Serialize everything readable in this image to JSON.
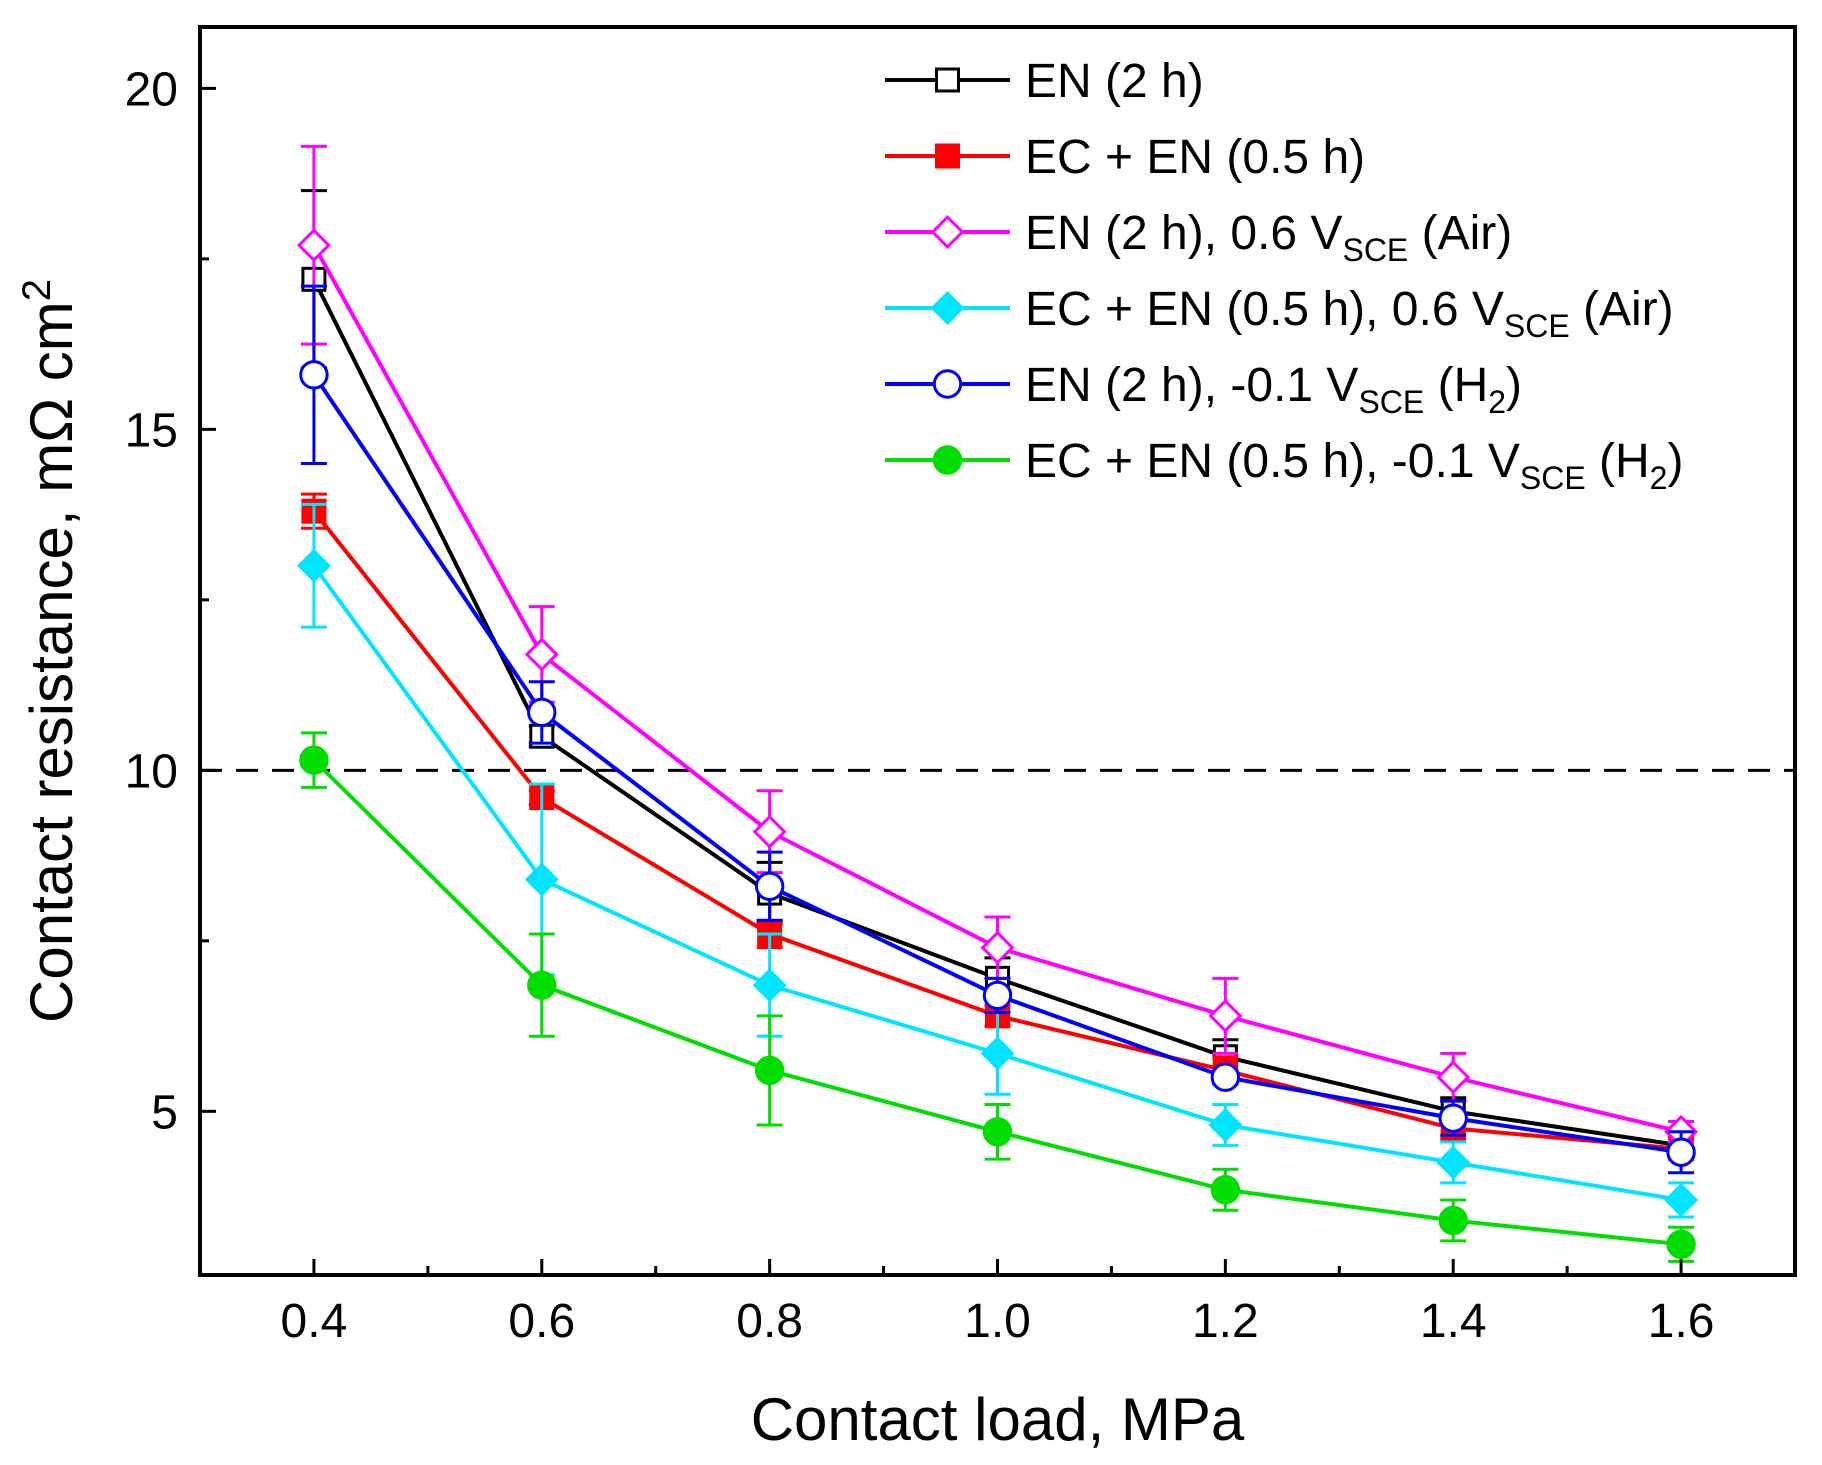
{
  "chart_data": {
    "type": "line",
    "xlabel": "Contact load, MPa",
    "ylabel_main": "Contact resistance, mΩ cm",
    "ylabel_sup": "2",
    "x": [
      0.4,
      0.6,
      0.8,
      1.0,
      1.2,
      1.4,
      1.6
    ],
    "xticks": [
      "0.4",
      "0.6",
      "0.8",
      "1.0",
      "1.2",
      "1.4",
      "1.6"
    ],
    "xlim": [
      0.3,
      1.7
    ],
    "yticks": [
      "5",
      "10",
      "15",
      "20"
    ],
    "ylim": [
      2.6,
      20.9
    ],
    "reference_line": {
      "y": 10,
      "style": "dashed",
      "color": "#000000"
    },
    "legend_position": "top-right",
    "series": [
      {
        "name": "EN (2 h)",
        "label_parts": [
          {
            "t": "EN (2 h)"
          }
        ],
        "color": "#000000",
        "marker": "square",
        "filled": false,
        "values": [
          17.2,
          10.5,
          8.2,
          6.95,
          5.8,
          5.0,
          4.5
        ],
        "errors": [
          1.3,
          0.15,
          0.45,
          0.3,
          0.25,
          0.2,
          0.15
        ]
      },
      {
        "name": "EC + EN (0.5 h)",
        "label_parts": [
          {
            "t": "EC + EN (0.5 h)"
          }
        ],
        "color": "#ff0000",
        "marker": "square",
        "filled": true,
        "values": [
          13.8,
          9.6,
          7.6,
          6.4,
          5.6,
          4.75,
          4.45
        ],
        "errors": [
          0.25,
          0.1,
          0.2,
          0.15,
          0.2,
          0.15,
          0.15
        ]
      },
      {
        "name": "EN (2 h), 0.6 VSCE (Air)",
        "label_parts": [
          {
            "t": "EN (2 h), 0.6 V"
          },
          {
            "t": "SCE",
            "sub": true
          },
          {
            "t": " (Air)"
          }
        ],
        "color": "#ff00ff",
        "marker": "diamond",
        "filled": false,
        "values": [
          17.7,
          11.7,
          9.1,
          7.4,
          6.4,
          5.5,
          4.7
        ],
        "errors": [
          1.45,
          0.7,
          0.6,
          0.45,
          0.55,
          0.35,
          0.15
        ]
      },
      {
        "name": "EC + EN (0.5 h), 0.6 VSCE (Air)",
        "label_parts": [
          {
            "t": "EC + EN (0.5 h), 0.6 V"
          },
          {
            "t": "SCE",
            "sub": true
          },
          {
            "t": " (Air)"
          }
        ],
        "color": "#00e5ff",
        "marker": "diamond",
        "filled": true,
        "values": [
          13.0,
          8.4,
          6.85,
          5.85,
          4.8,
          4.25,
          3.7
        ],
        "errors": [
          0.9,
          1.4,
          0.75,
          0.6,
          0.3,
          0.3,
          0.25
        ]
      },
      {
        "name": "EN (2 h), -0.1 VSCE (H2)",
        "label_parts": [
          {
            "t": "EN (2 h), -0.1 V"
          },
          {
            "t": "SCE",
            "sub": true
          },
          {
            "t": " (H"
          },
          {
            "t": "2",
            "sub": true
          },
          {
            "t": ")"
          }
        ],
        "color": "#0000ff",
        "marker": "circle",
        "filled": false,
        "values": [
          15.8,
          10.85,
          8.3,
          6.7,
          5.5,
          4.9,
          4.4
        ],
        "errors": [
          1.3,
          0.45,
          0.5,
          0.25,
          0.1,
          0.25,
          0.3
        ]
      },
      {
        "name": "EC + EN (0.5 h), -0.1 VSCE (H2)",
        "label_parts": [
          {
            "t": "EC + EN (0.5 h), -0.1 V"
          },
          {
            "t": "SCE",
            "sub": true
          },
          {
            "t": " (H"
          },
          {
            "t": "2",
            "sub": true
          },
          {
            "t": ")"
          }
        ],
        "color": "#00dd00",
        "marker": "circle",
        "filled": true,
        "values": [
          10.15,
          6.85,
          5.6,
          4.7,
          3.85,
          3.4,
          3.05
        ],
        "errors": [
          0.4,
          0.75,
          0.8,
          0.4,
          0.3,
          0.3,
          0.25
        ]
      }
    ]
  }
}
